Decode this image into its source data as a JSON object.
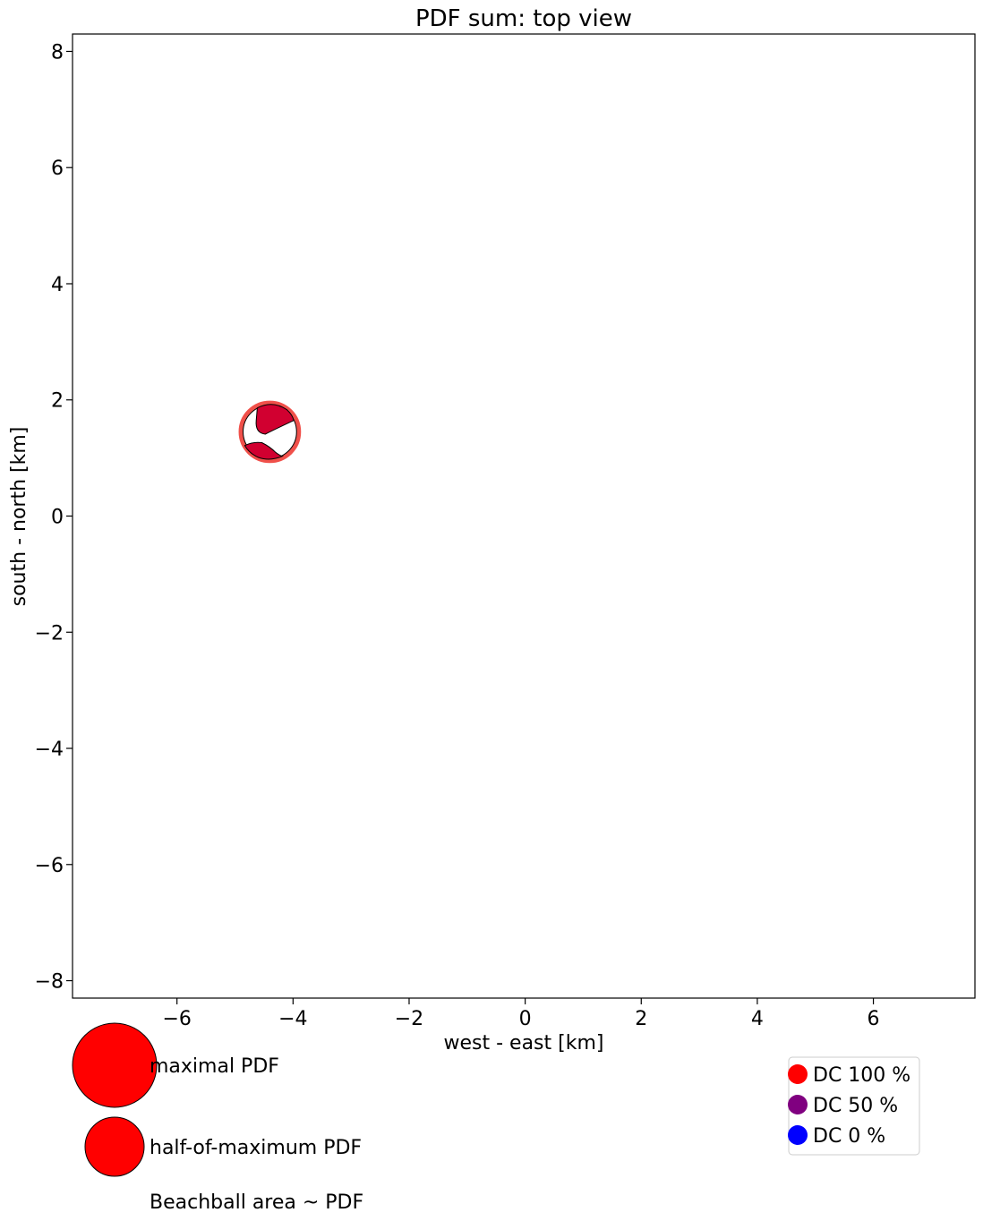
{
  "chart_data": {
    "type": "scatter",
    "title": "PDF sum: top view",
    "xlabel": "west - east [km]",
    "ylabel": "south - north [km]",
    "xlim": [
      -7.8,
      7.75
    ],
    "ylim": [
      -8.3,
      8.3
    ],
    "xticks": [
      -6,
      -4,
      -2,
      0,
      2,
      4,
      6
    ],
    "yticks": [
      -8,
      -6,
      -4,
      -2,
      0,
      2,
      4,
      6,
      8
    ],
    "grid": false,
    "points": [
      {
        "x": -4.4,
        "y": 1.45,
        "pdf_fraction": 0.55,
        "dc_percent": 100,
        "ring_color": "#f0504a",
        "fill_color": "#d10030"
      }
    ],
    "size_legend": {
      "items": [
        {
          "label": "maximal PDF",
          "pdf_fraction": 1.0,
          "color": "#ff0000"
        },
        {
          "label": "half-of-maximum PDF",
          "pdf_fraction": 0.5,
          "color": "#ff0000"
        }
      ],
      "note": "Beachball area ~ PDF"
    },
    "color_legend": {
      "placement": "bottom-right",
      "items": [
        {
          "label": "DC 100 %",
          "color": "#ff0000"
        },
        {
          "label": "DC 50 %",
          "color": "#800080"
        },
        {
          "label": "DC 0 %",
          "color": "#0000ff"
        }
      ]
    }
  }
}
